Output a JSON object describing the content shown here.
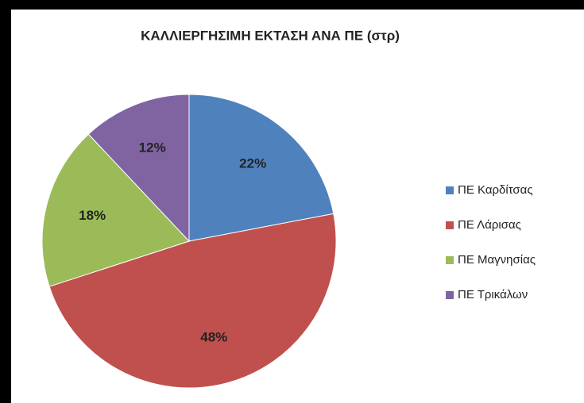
{
  "chart_data": {
    "type": "pie",
    "title": "ΚΑΛΛΙΕΡΓΗΣΙΜΗ ΕΚΤΑΣΗ ΑΝΑ ΠΕ (στρ)",
    "categories": [
      "ΠΕ Καρδίτσας",
      "ΠΕ Λάρισας",
      "ΠΕ Μαγνησίας",
      "ΠΕ Τρικάλων"
    ],
    "values": [
      22,
      48,
      18,
      12
    ],
    "value_labels": [
      "22%",
      "48%",
      "18%",
      "12%"
    ],
    "colors": [
      "#4f81bd",
      "#c0504d",
      "#9bbb59",
      "#8064a2"
    ],
    "legend": "right"
  }
}
